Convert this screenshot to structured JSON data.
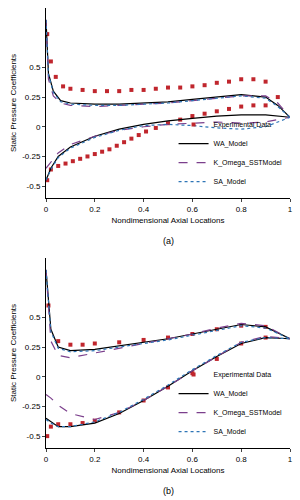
{
  "chart_data": [
    {
      "type": "line",
      "title": "(a)",
      "x_label": "Nondimensional Axial Locations",
      "y_label": "Static Pressure Coefficients",
      "xlim": [
        0,
        1
      ],
      "xticks": [
        0,
        0.2,
        0.4,
        0.6,
        0.8,
        1
      ],
      "ylim": [
        -0.6,
        1
      ],
      "yticks": [
        -0.5,
        -0.25,
        0,
        0.25,
        0.5
      ],
      "grid": false,
      "legend": "lower right",
      "series": [
        {
          "name": "Experimental Data",
          "type": "scatter",
          "marker": "square",
          "color": "#c0262d",
          "x": [
            0.005,
            0.02,
            0.04,
            0.07,
            0.1,
            0.15,
            0.2,
            0.25,
            0.3,
            0.35,
            0.4,
            0.45,
            0.5,
            0.55,
            0.6,
            0.65,
            0.7,
            0.75,
            0.8,
            0.85,
            0.9,
            0.95,
            null,
            0.005,
            0.02,
            0.05,
            0.08,
            0.11,
            0.14,
            0.17,
            0.2,
            0.23,
            0.26,
            0.29,
            0.32,
            0.35,
            0.38,
            0.41,
            0.45,
            0.5,
            0.55,
            0.6,
            0.65,
            0.7,
            0.75,
            0.8,
            0.85,
            0.9
          ],
          "values": [
            0.78,
            0.55,
            0.42,
            0.34,
            0.32,
            0.31,
            0.3,
            0.3,
            0.3,
            0.31,
            0.31,
            0.32,
            0.33,
            0.33,
            0.34,
            0.35,
            0.37,
            0.38,
            0.4,
            0.4,
            0.38,
            0.25,
            null,
            -0.45,
            -0.36,
            -0.33,
            -0.31,
            -0.29,
            -0.27,
            -0.25,
            -0.23,
            -0.21,
            -0.19,
            -0.16,
            -0.13,
            -0.1,
            -0.07,
            -0.04,
            -0.01,
            0.03,
            0.06,
            0.09,
            0.11,
            0.13,
            0.15,
            0.17,
            0.18,
            0.18
          ]
        },
        {
          "name": "WA_Model",
          "type": "line",
          "line_style": "solid",
          "color": "#000000",
          "x": [
            0,
            0.01,
            0.03,
            0.06,
            0.1,
            0.2,
            0.3,
            0.4,
            0.5,
            0.6,
            0.7,
            0.8,
            0.9,
            0.95,
            1,
            null,
            0,
            0.02,
            0.05,
            0.1,
            0.2,
            0.3,
            0.4,
            0.5,
            0.6,
            0.7,
            0.8,
            0.9,
            1
          ],
          "values": [
            0.9,
            0.45,
            0.3,
            0.22,
            0.2,
            0.19,
            0.19,
            0.2,
            0.21,
            0.23,
            0.25,
            0.27,
            0.25,
            0.18,
            0.08,
            null,
            -0.45,
            -0.35,
            -0.25,
            -0.17,
            -0.08,
            -0.02,
            0.02,
            0.05,
            0.07,
            0.09,
            0.1,
            0.1,
            0.08
          ]
        },
        {
          "name": "K_Omega_SSTModel",
          "type": "line",
          "line_style": "dash",
          "color": "#7b3f8c",
          "x": [
            0,
            0.01,
            0.03,
            0.06,
            0.1,
            0.2,
            0.3,
            0.4,
            0.5,
            0.6,
            0.7,
            0.8,
            0.9,
            0.95,
            1,
            null,
            0,
            0.02,
            0.05,
            0.1,
            0.2,
            0.3,
            0.4,
            0.5,
            0.6,
            0.7,
            0.8,
            0.9,
            1
          ],
          "values": [
            0.9,
            0.4,
            0.26,
            0.2,
            0.18,
            0.17,
            0.18,
            0.19,
            0.2,
            0.22,
            0.24,
            0.26,
            0.26,
            0.2,
            0.08,
            null,
            -0.35,
            -0.3,
            -0.22,
            -0.15,
            -0.08,
            -0.03,
            0,
            0.02,
            0.03,
            0.04,
            0.03,
            0.04,
            0.08
          ]
        },
        {
          "name": "SA_Model",
          "type": "line",
          "line_style": "dot",
          "color": "#2e75b6",
          "x": [
            0,
            0.01,
            0.03,
            0.06,
            0.1,
            0.2,
            0.3,
            0.4,
            0.5,
            0.6,
            0.7,
            0.8,
            0.9,
            0.95,
            1,
            null,
            0,
            0.02,
            0.05,
            0.1,
            0.2,
            0.3,
            0.4,
            0.5,
            0.6,
            0.7,
            0.8,
            0.9,
            1
          ],
          "values": [
            0.9,
            0.44,
            0.29,
            0.21,
            0.19,
            0.18,
            0.18,
            0.19,
            0.2,
            0.22,
            0.24,
            0.26,
            0.24,
            0.17,
            0.08,
            null,
            -0.45,
            -0.36,
            -0.26,
            -0.18,
            -0.09,
            -0.03,
            0.01,
            0.02,
            0.01,
            -0.01,
            -0.02,
            0,
            0.08
          ]
        }
      ]
    },
    {
      "type": "line",
      "title": "(b)",
      "x_label": "Nondimensional Axial Locations",
      "y_label": "Static Pressure Coefficients",
      "xlim": [
        0,
        1
      ],
      "xticks": [
        0,
        0.2,
        0.4,
        0.6,
        0.8,
        1
      ],
      "ylim": [
        -0.6,
        1
      ],
      "yticks": [
        -0.5,
        -0.25,
        0,
        0.25,
        0.5
      ],
      "grid": false,
      "legend": "lower right",
      "series": [
        {
          "name": "Experimental Data",
          "type": "scatter",
          "marker": "square",
          "color": "#c0262d",
          "x": [
            0.01,
            0.05,
            0.1,
            0.15,
            0.2,
            0.3,
            0.4,
            0.5,
            0.6,
            0.7,
            0.8,
            0.9,
            null,
            0.005,
            0.02,
            0.05,
            0.1,
            0.15,
            0.2,
            0.3,
            0.4,
            0.5,
            0.6,
            0.7,
            0.8,
            0.9
          ],
          "values": [
            0.6,
            0.3,
            0.27,
            0.27,
            0.28,
            0.29,
            0.31,
            0.33,
            0.36,
            0.4,
            0.43,
            0.42,
            null,
            -0.5,
            -0.42,
            -0.4,
            -0.4,
            -0.39,
            -0.37,
            -0.3,
            -0.2,
            -0.09,
            0.03,
            0.15,
            0.28,
            0.33
          ]
        },
        {
          "name": "WA_Model",
          "type": "line",
          "line_style": "solid",
          "color": "#000000",
          "x": [
            0,
            0.02,
            0.05,
            0.1,
            0.2,
            0.3,
            0.4,
            0.5,
            0.6,
            0.7,
            0.8,
            0.9,
            1,
            null,
            0,
            0.02,
            0.05,
            0.1,
            0.2,
            0.3,
            0.4,
            0.5,
            0.6,
            0.7,
            0.8,
            0.9,
            1
          ],
          "values": [
            0.9,
            0.4,
            0.25,
            0.22,
            0.23,
            0.26,
            0.29,
            0.32,
            0.36,
            0.4,
            0.44,
            0.42,
            0.32,
            null,
            -0.35,
            -0.38,
            -0.42,
            -0.42,
            -0.39,
            -0.31,
            -0.2,
            -0.08,
            0.05,
            0.17,
            0.28,
            0.33,
            0.32
          ]
        },
        {
          "name": "K_Omega_SSTModel",
          "type": "line",
          "line_style": "dash",
          "color": "#7b3f8c",
          "x": [
            0,
            0.02,
            0.05,
            0.1,
            0.2,
            0.3,
            0.4,
            0.5,
            0.6,
            0.7,
            0.8,
            0.9,
            1,
            null,
            0,
            0.02,
            0.05,
            0.1,
            0.2,
            0.3,
            0.4,
            0.5,
            0.6,
            0.7,
            0.8,
            0.9,
            1
          ],
          "values": [
            0.9,
            0.3,
            0.18,
            0.16,
            0.2,
            0.24,
            0.28,
            0.32,
            0.36,
            0.41,
            0.45,
            0.43,
            0.32,
            null,
            -0.15,
            -0.18,
            -0.24,
            -0.31,
            -0.36,
            -0.3,
            -0.2,
            -0.08,
            0.05,
            0.17,
            0.29,
            0.34,
            0.32
          ]
        },
        {
          "name": "SA_Model",
          "type": "line",
          "line_style": "dot",
          "color": "#2e75b6",
          "x": [
            0,
            0.02,
            0.05,
            0.1,
            0.2,
            0.3,
            0.4,
            0.5,
            0.6,
            0.7,
            0.8,
            0.9,
            1,
            null,
            0,
            0.02,
            0.05,
            0.1,
            0.2,
            0.3,
            0.4,
            0.5,
            0.6,
            0.7,
            0.8,
            0.9,
            1
          ],
          "values": [
            0.9,
            0.38,
            0.24,
            0.21,
            0.22,
            0.25,
            0.28,
            0.31,
            0.35,
            0.39,
            0.43,
            0.41,
            0.32,
            null,
            -0.36,
            -0.39,
            -0.42,
            -0.42,
            -0.38,
            -0.3,
            -0.19,
            -0.07,
            0.06,
            0.18,
            0.29,
            0.33,
            0.32
          ]
        }
      ]
    }
  ]
}
